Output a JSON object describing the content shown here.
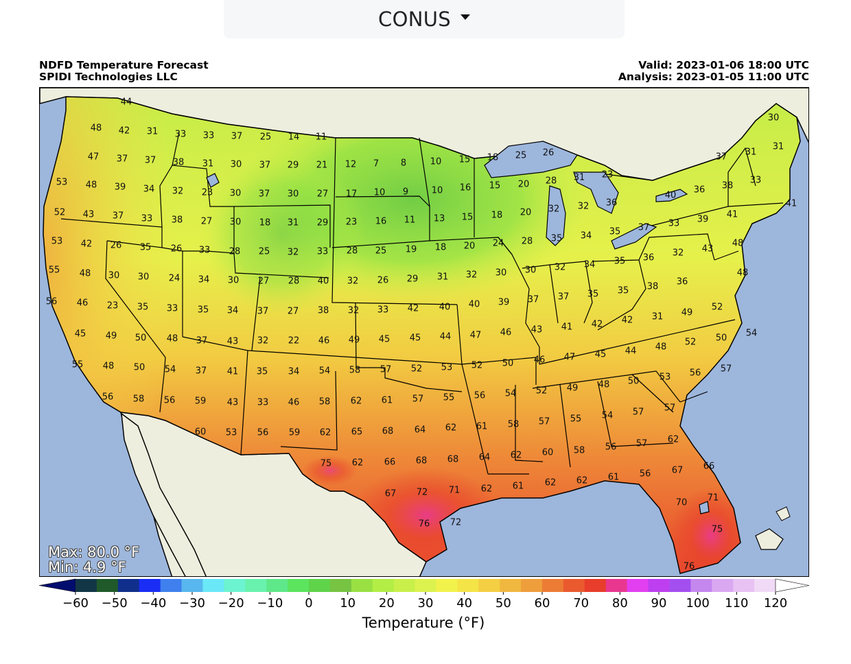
{
  "region_selector": {
    "label": "CONUS",
    "icon": "caret-down-icon"
  },
  "header": {
    "left": [
      "NDFD Temperature Forecast",
      "SPIDI Technologies LLC"
    ],
    "right": [
      "Valid: 2023-01-06 18:00 UTC",
      "Analysis: 2023-01-05 11:00 UTC"
    ]
  },
  "stats": {
    "max": "Max: 80.0 °F",
    "min": "Min: 4.9 °F"
  },
  "colorbar": {
    "label": "Temperature (°F)",
    "ticks": [
      "−60",
      "−50",
      "−40",
      "−30",
      "−20",
      "−10",
      "0",
      "10",
      "20",
      "30",
      "40",
      "50",
      "60",
      "70",
      "80",
      "90",
      "100",
      "110",
      "120"
    ],
    "colors": [
      "#020d6e",
      "#133646",
      "#205a2a",
      "#102f8c",
      "#1a2df5",
      "#3f80ee",
      "#58b7ee",
      "#6ae8f8",
      "#6cf3cf",
      "#69f2ae",
      "#5fe88a",
      "#5ce45e",
      "#5fd44a",
      "#77c342",
      "#99e043",
      "#b2ee45",
      "#c9f04a",
      "#dcf24e",
      "#f2f24c",
      "#f4e447",
      "#f4cf43",
      "#f1b83f",
      "#ee9e3b",
      "#ec7c34",
      "#ea5a2f",
      "#e83d2b",
      "#e9378f",
      "#e23ff0",
      "#bd3ff0",
      "#a34ff0",
      "#c487ee",
      "#d9a8f0",
      "#e7c2f2",
      "#f1daf6",
      "#ffffff"
    ]
  },
  "map": {
    "colors": {
      "ocean": "#9db6dc",
      "land_outside": "#eeeedf",
      "border": "#000000",
      "label": "#111111",
      "lake": "#9db6dc"
    },
    "temperature_labels": [
      [
        "44",
        183,
        148
      ],
      [
        "48",
        139,
        186
      ],
      [
        "42",
        180,
        190
      ],
      [
        "31",
        221,
        191
      ],
      [
        "33",
        262,
        195
      ],
      [
        "33",
        303,
        197
      ],
      [
        "37",
        344,
        198
      ],
      [
        "25",
        386,
        199
      ],
      [
        "14",
        427,
        199
      ],
      [
        "11",
        467,
        199
      ],
      [
        "47",
        135,
        228
      ],
      [
        "37",
        177,
        231
      ],
      [
        "37",
        218,
        233
      ],
      [
        "38",
        259,
        236
      ],
      [
        "31",
        302,
        238
      ],
      [
        "30",
        343,
        239
      ],
      [
        "37",
        385,
        240
      ],
      [
        "29",
        426,
        240
      ],
      [
        "21",
        468,
        240
      ],
      [
        "12",
        510,
        239
      ],
      [
        "7",
        547,
        238
      ],
      [
        "8",
        587,
        237
      ],
      [
        "10",
        634,
        235
      ],
      [
        "15",
        676,
        232
      ],
      [
        "18",
        717,
        229
      ],
      [
        "25",
        758,
        226
      ],
      [
        "26",
        798,
        222
      ],
      [
        "53",
        89,
        265
      ],
      [
        "48",
        132,
        269
      ],
      [
        "39",
        174,
        272
      ],
      [
        "34",
        216,
        275
      ],
      [
        "32",
        258,
        278
      ],
      [
        "23",
        301,
        280
      ],
      [
        "30",
        342,
        281
      ],
      [
        "37",
        384,
        282
      ],
      [
        "30",
        426,
        282
      ],
      [
        "27",
        469,
        282
      ],
      [
        "17",
        511,
        282
      ],
      [
        "10",
        552,
        280
      ],
      [
        "9",
        590,
        279
      ],
      [
        "10",
        636,
        277
      ],
      [
        "16",
        677,
        273
      ],
      [
        "15",
        720,
        270
      ],
      [
        "20",
        762,
        268
      ],
      [
        "28",
        802,
        263
      ],
      [
        "31",
        843,
        258
      ],
      [
        "23",
        884,
        254
      ],
      [
        "52",
        86,
        309
      ],
      [
        "43",
        128,
        312
      ],
      [
        "37",
        171,
        314
      ],
      [
        "33",
        213,
        318
      ],
      [
        "38",
        257,
        320
      ],
      [
        "27",
        300,
        322
      ],
      [
        "30",
        342,
        323
      ],
      [
        "18",
        385,
        324
      ],
      [
        "31",
        426,
        324
      ],
      [
        "29",
        469,
        324
      ],
      [
        "23",
        511,
        323
      ],
      [
        "16",
        554,
        322
      ],
      [
        "11",
        596,
        320
      ],
      [
        "13",
        639,
        318
      ],
      [
        "15",
        680,
        316
      ],
      [
        "18",
        723,
        313
      ],
      [
        "20",
        765,
        309
      ],
      [
        "32",
        806,
        304
      ],
      [
        "32",
        849,
        300
      ],
      [
        "36",
        890,
        295
      ],
      [
        "40",
        976,
        284
      ],
      [
        "36",
        1018,
        276
      ],
      [
        "38",
        1059,
        270
      ],
      [
        "33",
        1100,
        262
      ],
      [
        "41",
        1152,
        296
      ],
      [
        "37",
        1050,
        228
      ],
      [
        "31",
        1093,
        221
      ],
      [
        "30",
        1126,
        171
      ],
      [
        "31",
        1133,
        213
      ],
      [
        "41",
        1066,
        312
      ],
      [
        "39",
        1023,
        319
      ],
      [
        "33",
        981,
        325
      ],
      [
        "37",
        937,
        331
      ],
      [
        "35",
        895,
        337
      ],
      [
        "53",
        82,
        351
      ],
      [
        "42",
        125,
        355
      ],
      [
        "26",
        168,
        357
      ],
      [
        "35",
        211,
        360
      ],
      [
        "26",
        256,
        362
      ],
      [
        "33",
        297,
        364
      ],
      [
        "28",
        341,
        366
      ],
      [
        "25",
        384,
        366
      ],
      [
        "32",
        426,
        367
      ],
      [
        "33",
        469,
        366
      ],
      [
        "28",
        512,
        365
      ],
      [
        "25",
        554,
        365
      ],
      [
        "19",
        598,
        363
      ],
      [
        "18",
        641,
        360
      ],
      [
        "20",
        683,
        358
      ],
      [
        "24",
        725,
        354
      ],
      [
        "28",
        767,
        351
      ],
      [
        "35",
        810,
        347
      ],
      [
        "34",
        853,
        343
      ],
      [
        "48",
        1074,
        354
      ],
      [
        "43",
        1030,
        362
      ],
      [
        "32",
        987,
        368
      ],
      [
        "36",
        944,
        375
      ],
      [
        "35",
        902,
        380
      ],
      [
        "55",
        78,
        393
      ],
      [
        "48",
        123,
        398
      ],
      [
        "30",
        165,
        401
      ],
      [
        "30",
        208,
        403
      ],
      [
        "24",
        253,
        405
      ],
      [
        "34",
        296,
        407
      ],
      [
        "30",
        339,
        408
      ],
      [
        "27",
        383,
        409
      ],
      [
        "28",
        427,
        409
      ],
      [
        "40",
        470,
        409
      ],
      [
        "32",
        513,
        409
      ],
      [
        "26",
        557,
        408
      ],
      [
        "29",
        600,
        406
      ],
      [
        "31",
        644,
        403
      ],
      [
        "32",
        686,
        400
      ],
      [
        "30",
        729,
        397
      ],
      [
        "30",
        772,
        393
      ],
      [
        "32",
        815,
        389
      ],
      [
        "34",
        858,
        385
      ],
      [
        "48",
        1081,
        397
      ],
      [
        "36",
        993,
        410
      ],
      [
        "38",
        950,
        417
      ],
      [
        "35",
        907,
        423
      ],
      [
        "35",
        863,
        428
      ],
      [
        "56",
        74,
        439
      ],
      [
        "46",
        119,
        441
      ],
      [
        "23",
        163,
        445
      ],
      [
        "35",
        207,
        447
      ],
      [
        "33",
        250,
        449
      ],
      [
        "35",
        295,
        451
      ],
      [
        "34",
        338,
        452
      ],
      [
        "37",
        382,
        453
      ],
      [
        "27",
        426,
        453
      ],
      [
        "38",
        470,
        452
      ],
      [
        "32",
        514,
        452
      ],
      [
        "33",
        557,
        451
      ],
      [
        "42",
        601,
        449
      ],
      [
        "40",
        647,
        447
      ],
      [
        "40",
        690,
        443
      ],
      [
        "39",
        733,
        440
      ],
      [
        "37",
        776,
        436
      ],
      [
        "37",
        820,
        432
      ],
      [
        "52",
        1044,
        447
      ],
      [
        "49",
        1000,
        455
      ],
      [
        "31",
        957,
        461
      ],
      [
        "42",
        913,
        466
      ],
      [
        "42",
        869,
        472
      ],
      [
        "41",
        825,
        476
      ],
      [
        "43",
        781,
        480
      ],
      [
        "46",
        736,
        484
      ],
      [
        "47",
        692,
        488
      ],
      [
        "44",
        648,
        490
      ],
      [
        "45",
        604,
        492
      ],
      [
        "45",
        559,
        494
      ],
      [
        "49",
        515,
        495
      ],
      [
        "46",
        471,
        496
      ],
      [
        "22",
        427,
        496
      ],
      [
        "32",
        382,
        496
      ],
      [
        "43",
        338,
        497
      ],
      [
        "37",
        293,
        496
      ],
      [
        "48",
        250,
        493
      ],
      [
        "50",
        204,
        492
      ],
      [
        "49",
        161,
        489
      ],
      [
        "45",
        116,
        486
      ],
      [
        "54",
        1094,
        485
      ],
      [
        "50",
        1050,
        492
      ],
      [
        "52",
        1005,
        498
      ],
      [
        "48",
        962,
        505
      ],
      [
        "44",
        918,
        511
      ],
      [
        "45",
        874,
        516
      ],
      [
        "47",
        829,
        520
      ],
      [
        "46",
        785,
        524
      ],
      [
        "50",
        739,
        529
      ],
      [
        "52",
        694,
        532
      ],
      [
        "53",
        650,
        535
      ],
      [
        "52",
        606,
        537
      ],
      [
        "57",
        561,
        538
      ],
      [
        "58",
        516,
        539
      ],
      [
        "54",
        472,
        540
      ],
      [
        "34",
        427,
        541
      ],
      [
        "35",
        381,
        541
      ],
      [
        "41",
        338,
        541
      ],
      [
        "37",
        292,
        540
      ],
      [
        "54",
        247,
        538
      ],
      [
        "50",
        202,
        535
      ],
      [
        "48",
        157,
        533
      ],
      [
        "55",
        112,
        531
      ],
      [
        "57",
        1057,
        537
      ],
      [
        "56",
        1012,
        543
      ],
      [
        "53",
        968,
        549
      ],
      [
        "50",
        922,
        555
      ],
      [
        "48",
        879,
        560
      ],
      [
        "49",
        833,
        565
      ],
      [
        "52",
        788,
        569
      ],
      [
        "54",
        743,
        573
      ],
      [
        "56",
        698,
        576
      ],
      [
        "55",
        653,
        579
      ],
      [
        "57",
        608,
        581
      ],
      [
        "61",
        563,
        583
      ],
      [
        "62",
        518,
        584
      ],
      [
        "58",
        472,
        585
      ],
      [
        "46",
        427,
        586
      ],
      [
        "33",
        382,
        586
      ],
      [
        "43",
        338,
        586
      ],
      [
        "59",
        291,
        584
      ],
      [
        "56",
        246,
        583
      ],
      [
        "58",
        201,
        581
      ],
      [
        "56",
        156,
        578
      ],
      [
        "57",
        975,
        594
      ],
      [
        "57",
        929,
        600
      ],
      [
        "54",
        884,
        605
      ],
      [
        "55",
        838,
        610
      ],
      [
        "57",
        792,
        614
      ],
      [
        "58",
        747,
        618
      ],
      [
        "61",
        701,
        621
      ],
      [
        "62",
        656,
        623
      ],
      [
        "64",
        611,
        626
      ],
      [
        "68",
        564,
        628
      ],
      [
        "65",
        519,
        629
      ],
      [
        "62",
        473,
        630
      ],
      [
        "59",
        428,
        630
      ],
      [
        "56",
        382,
        630
      ],
      [
        "53",
        336,
        630
      ],
      [
        "60",
        291,
        629
      ],
      [
        "62",
        980,
        640
      ],
      [
        "57",
        934,
        646
      ],
      [
        "56",
        889,
        651
      ],
      [
        "58",
        843,
        656
      ],
      [
        "60",
        797,
        659
      ],
      [
        "62",
        751,
        663
      ],
      [
        "64",
        705,
        666
      ],
      [
        "68",
        659,
        669
      ],
      [
        "68",
        613,
        671
      ],
      [
        "66",
        567,
        673
      ],
      [
        "62",
        520,
        674
      ],
      [
        "75",
        474,
        675
      ],
      [
        "66",
        1032,
        679
      ],
      [
        "67",
        986,
        685
      ],
      [
        "56",
        939,
        690
      ],
      [
        "61",
        893,
        695
      ],
      [
        "62",
        847,
        700
      ],
      [
        "62",
        801,
        703
      ],
      [
        "61",
        754,
        708
      ],
      [
        "62",
        708,
        712
      ],
      [
        "71",
        661,
        714
      ],
      [
        "72",
        614,
        717
      ],
      [
        "67",
        568,
        719
      ],
      [
        "71",
        1038,
        725
      ],
      [
        "70",
        992,
        732
      ],
      [
        "75",
        1044,
        771
      ],
      [
        "76",
        617,
        763
      ],
      [
        "72",
        663,
        761
      ],
      [
        "76",
        1003,
        825
      ]
    ]
  }
}
